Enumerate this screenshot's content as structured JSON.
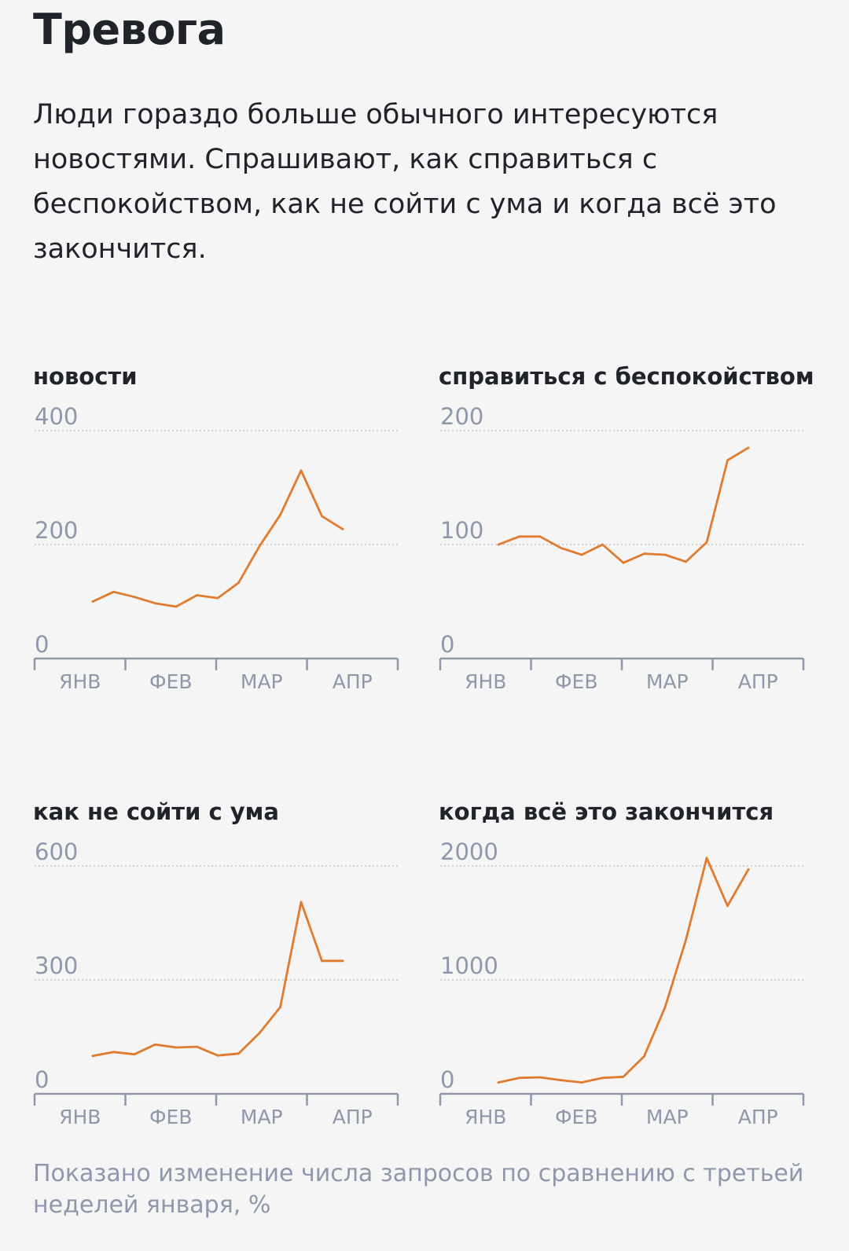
{
  "title": "Тревога",
  "intro": "Люди гораздо больше обычного интересуются новостями. Спрашивают, как справиться с беспокойством, как не сойти с ума и когда всё это закончится.",
  "caption": "Показано изменение числа запросов по сравнению с третьей неделей января, %",
  "colors": {
    "line": "#e07b30",
    "axis": "#8f97ab",
    "grid": "#b7bcc8",
    "text": "#21232b"
  },
  "chart_data": [
    {
      "type": "line",
      "title": "новости",
      "ylim": [
        0,
        400
      ],
      "yticks": [
        0,
        200,
        400
      ],
      "months": [
        "ЯНВ",
        "ФЕВ",
        "МАР",
        "АПР"
      ],
      "values": [
        100,
        117,
        108,
        97,
        91,
        111,
        106,
        133,
        197,
        252,
        330,
        250,
        227
      ]
    },
    {
      "type": "line",
      "title": "справиться с беспокойством",
      "ylim": [
        0,
        200
      ],
      "yticks": [
        0,
        100,
        200
      ],
      "months": [
        "ЯНВ",
        "ФЕВ",
        "МАР",
        "АПР"
      ],
      "values": [
        100,
        107,
        107,
        97,
        91,
        100,
        84,
        92,
        91,
        85,
        102,
        174,
        185
      ]
    },
    {
      "type": "line",
      "title": "как не сойти с ума",
      "ylim": [
        0,
        600
      ],
      "yticks": [
        0,
        300,
        600
      ],
      "months": [
        "ЯНВ",
        "ФЕВ",
        "МАР",
        "АПР"
      ],
      "values": [
        100,
        110,
        104,
        130,
        122,
        124,
        101,
        106,
        160,
        228,
        505,
        350,
        350
      ]
    },
    {
      "type": "line",
      "title": "когда всё это закончится",
      "ylim": [
        0,
        2000
      ],
      "yticks": [
        0,
        1000,
        2000
      ],
      "months": [
        "ЯНВ",
        "ФЕВ",
        "МАР",
        "АПР"
      ],
      "values": [
        100,
        140,
        145,
        120,
        100,
        140,
        150,
        330,
        760,
        1350,
        2070,
        1650,
        1970
      ]
    }
  ]
}
